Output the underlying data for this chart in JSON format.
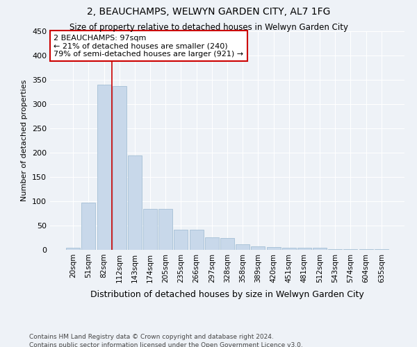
{
  "title": "2, BEAUCHAMPS, WELWYN GARDEN CITY, AL7 1FG",
  "subtitle": "Size of property relative to detached houses in Welwyn Garden City",
  "xlabel": "Distribution of detached houses by size in Welwyn Garden City",
  "ylabel": "Number of detached properties",
  "bar_color": "#c8d8ea",
  "bar_edge_color": "#9ab8d0",
  "categories": [
    "20sqm",
    "51sqm",
    "82sqm",
    "112sqm",
    "143sqm",
    "174sqm",
    "205sqm",
    "235sqm",
    "266sqm",
    "297sqm",
    "328sqm",
    "358sqm",
    "389sqm",
    "420sqm",
    "451sqm",
    "481sqm",
    "512sqm",
    "543sqm",
    "574sqm",
    "604sqm",
    "635sqm"
  ],
  "values": [
    5,
    97,
    340,
    337,
    195,
    84,
    84,
    41,
    41,
    26,
    25,
    11,
    7,
    6,
    5,
    5,
    5,
    2,
    2,
    2,
    2
  ],
  "ylim": [
    0,
    450
  ],
  "yticks": [
    0,
    50,
    100,
    150,
    200,
    250,
    300,
    350,
    400,
    450
  ],
  "property_line_x": 2.5,
  "annotation_text": "2 BEAUCHAMPS: 97sqm\n← 21% of detached houses are smaller (240)\n79% of semi-detached houses are larger (921) →",
  "annotation_box_color": "#ffffff",
  "annotation_box_edge": "#cc0000",
  "footer1": "Contains HM Land Registry data © Crown copyright and database right 2024.",
  "footer2": "Contains public sector information licensed under the Open Government Licence v3.0.",
  "background_color": "#eef2f7",
  "grid_color": "#ffffff",
  "line_color": "#cc0000"
}
